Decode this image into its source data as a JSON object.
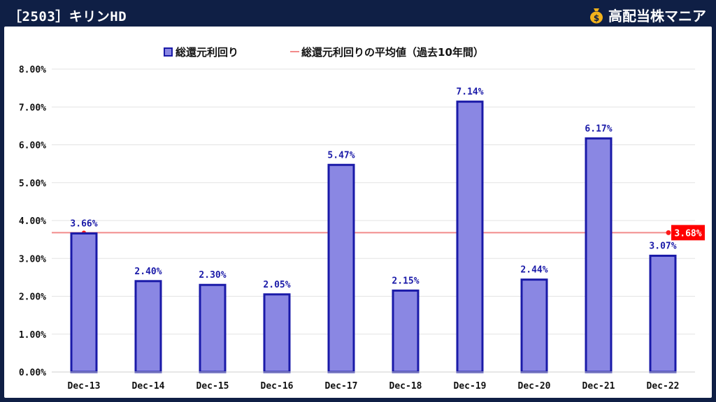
{
  "header": {
    "title": "［2503］キリンHD",
    "brand_name": "高配当株マニア",
    "brand_icon": "money-bag-icon"
  },
  "colors": {
    "background": "#0f1f45",
    "bar_fill": "#8a87e3",
    "bar_stroke": "#1a1aa8",
    "label_color": "#1a1aa8",
    "average_line": "#f28b8b",
    "average_marker": "#ff1a1a",
    "average_label_bg": "#ff0000"
  },
  "chart_data": {
    "type": "bar",
    "categories": [
      "Dec-13",
      "Dec-14",
      "Dec-15",
      "Dec-16",
      "Dec-17",
      "Dec-18",
      "Dec-19",
      "Dec-20",
      "Dec-21",
      "Dec-22"
    ],
    "series": [
      {
        "name": "総還元利回り",
        "values": [
          3.66,
          2.4,
          2.3,
          2.05,
          5.47,
          2.15,
          7.14,
          2.44,
          6.17,
          3.07
        ],
        "labels": [
          "3.66%",
          "2.40%",
          "2.30%",
          "2.05%",
          "5.47%",
          "2.15%",
          "7.14%",
          "2.44%",
          "6.17%",
          "3.07%"
        ]
      }
    ],
    "average_line": {
      "name": "総還元利回りの平均値（過去10年間）",
      "value": 3.68,
      "label": "3.68%"
    },
    "ylim": [
      0,
      8
    ],
    "yticks": [
      "0.00%",
      "1.00%",
      "2.00%",
      "3.00%",
      "4.00%",
      "5.00%",
      "6.00%",
      "7.00%",
      "8.00%"
    ],
    "grid": true,
    "legend_position": "top"
  }
}
